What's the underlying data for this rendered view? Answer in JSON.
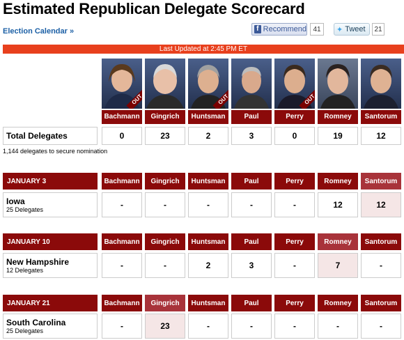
{
  "header": {
    "title": "Estimated Republican Delegate Scorecard",
    "calendar_link": "Election Calendar »",
    "recommend_label": "Recommend",
    "recommend_count": "41",
    "tweet_label": "Tweet",
    "tweet_count": "21"
  },
  "updated": "Last Updated at 2:45 PM ET",
  "out_label": "OUT",
  "candidates": [
    "Bachmann",
    "Gingrich",
    "Huntsman",
    "Paul",
    "Perry",
    "Romney",
    "Santorum"
  ],
  "total": {
    "label": "Total Delegates",
    "values": [
      "0",
      "23",
      "2",
      "3",
      "0",
      "19",
      "12"
    ],
    "note": "1,144 delegates to secure nomination"
  },
  "contests": [
    {
      "date": "JANUARY 3",
      "state": "Iowa",
      "delegates": "25 Delegates",
      "values": [
        "-",
        "-",
        "-",
        "-",
        "-",
        "12",
        "12"
      ]
    },
    {
      "date": "JANUARY 10",
      "state": "New Hampshire",
      "delegates": "12 Delegates",
      "values": [
        "-",
        "-",
        "2",
        "3",
        "-",
        "7",
        "-"
      ]
    },
    {
      "date": "JANUARY 21",
      "state": "South Carolina",
      "delegates": "25 Delegates",
      "values": [
        "-",
        "23",
        "-",
        "-",
        "-",
        "-",
        "-"
      ]
    }
  ],
  "colors": {
    "header_red": "#8b0a0a",
    "banner_orange": "#e8401d",
    "winner_bg": "#f5e6e6",
    "link_blue": "#1b5fa5"
  }
}
